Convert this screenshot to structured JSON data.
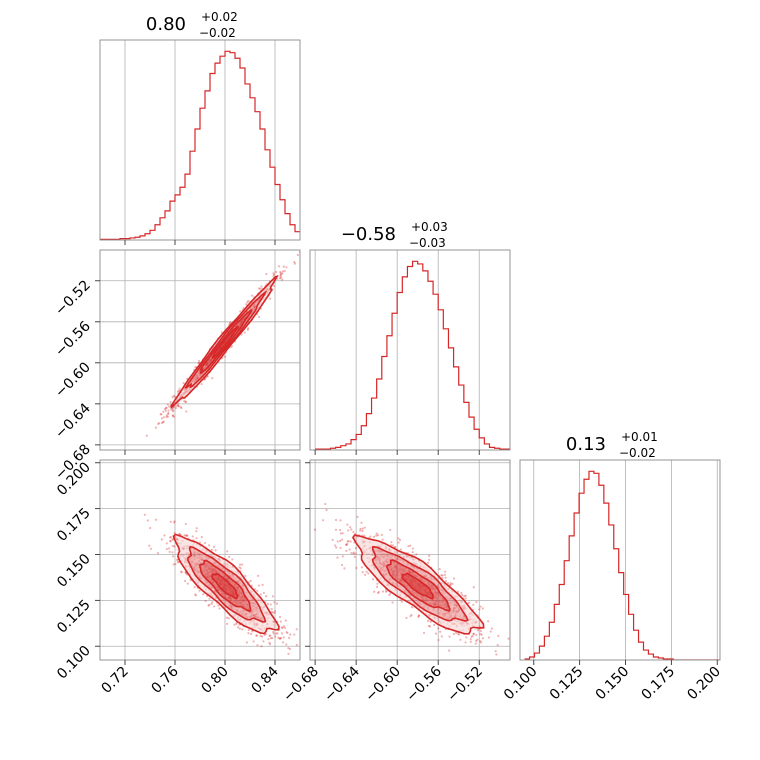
{
  "chart_data": {
    "type": "corner",
    "color": "#d62728",
    "parameters": [
      {
        "title_value": "0.80",
        "title_plus": "+0.02",
        "title_minus": "−0.02",
        "xlim": [
          0.7,
          0.86
        ],
        "ticks": [
          0.72,
          0.76,
          0.8,
          0.84
        ],
        "tick_labels": [
          "0.72",
          "0.76",
          "0.80",
          "0.84"
        ]
      },
      {
        "title_value": "−0.58",
        "title_plus": "+0.03",
        "title_minus": "−0.03",
        "xlim": [
          -0.685,
          -0.49
        ],
        "ticks": [
          -0.68,
          -0.64,
          -0.6,
          -0.56,
          -0.52
        ],
        "tick_labels": [
          "−0.68",
          "−0.64",
          "−0.60",
          "−0.56",
          "−0.52"
        ]
      },
      {
        "title_value": "0.13",
        "title_plus": "+0.01",
        "title_minus": "−0.02",
        "xlim": [
          0.0925,
          0.2015
        ],
        "ticks": [
          0.1,
          0.125,
          0.15,
          0.175,
          0.2
        ],
        "tick_labels": [
          "0.100",
          "0.125",
          "0.150",
          "0.175",
          "0.200"
        ]
      }
    ],
    "histograms": [
      {
        "bin_start": 0.7,
        "bin_width": 0.004,
        "counts": [
          1,
          1,
          1,
          1,
          2,
          2,
          3,
          4,
          6,
          9,
          14,
          22,
          32,
          42,
          56,
          65,
          76,
          95,
          128,
          160,
          190,
          215,
          240,
          255,
          265,
          272,
          270,
          262,
          248,
          225,
          205,
          185,
          160,
          130,
          105,
          80,
          58,
          38,
          22,
          12
        ]
      },
      {
        "bin_start": -0.68,
        "bin_width": 0.005,
        "counts": [
          1,
          1,
          1,
          2,
          3,
          5,
          7,
          12,
          18,
          28,
          42,
          60,
          82,
          108,
          132,
          158,
          182,
          200,
          212,
          218,
          215,
          207,
          195,
          180,
          162,
          140,
          118,
          96,
          75,
          55,
          38,
          24,
          14,
          7,
          3,
          2,
          1,
          1,
          1
        ]
      },
      {
        "bin_start": 0.095,
        "bin_width": 0.0027,
        "counts": [
          1,
          3,
          7,
          14,
          24,
          38,
          56,
          76,
          100,
          125,
          148,
          168,
          182,
          190,
          188,
          176,
          158,
          136,
          112,
          88,
          66,
          46,
          30,
          18,
          10,
          6,
          3,
          2,
          1,
          1,
          0,
          0,
          0,
          0,
          0,
          0,
          0,
          0,
          0,
          0
        ]
      }
    ],
    "correlations": [
      {
        "pair": [
          1,
          0
        ],
        "mean": [
          0.8,
          -0.58
        ],
        "sd": [
          0.02,
          0.03
        ],
        "rho": 0.985
      },
      {
        "pair": [
          2,
          0
        ],
        "mean": [
          0.8,
          0.133
        ],
        "sd": [
          0.02,
          0.013
        ],
        "rho": -0.85
      },
      {
        "pair": [
          2,
          1
        ],
        "mean": [
          -0.58,
          0.133
        ],
        "sd": [
          0.03,
          0.013
        ],
        "rho": -0.85
      }
    ],
    "contour_levels_sigma": [
      0.5,
      1.0,
      1.5,
      2.0
    ],
    "grid": true
  }
}
